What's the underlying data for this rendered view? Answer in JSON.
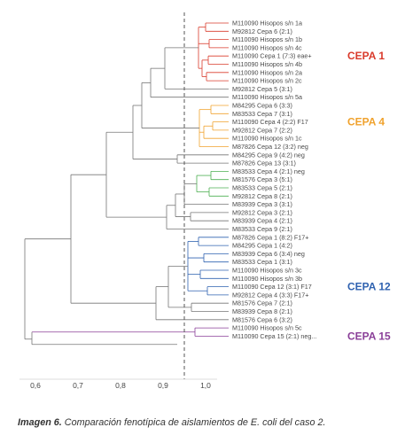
{
  "leaves": [
    "M110090 Hisopos s/n 1a",
    "M92812 Cepa 6 (2:1)",
    "M110090 Hisopos s/n 1b",
    "M110090 Hisopos s/n 4c",
    "M110090 Cepa 1 (7:3) eae+",
    "M110090 Hisopos s/n 4b",
    "M110090 Hisopos s/n 2a",
    "M110090 Hisopos s/n 2c",
    "M92812 Cepa 5 (3:1)",
    "M110090 Hisopos s/n 5a",
    "M84295 Cepa 6 (3:3)",
    "M83533 Cepa 7 (3:1)",
    "M110090 Cepa 4 (2:2) F17",
    "M92812 Cepa 7 (2:2)",
    "M110090 Hisopos s/n 1c",
    "M87826 Cepa 12 (3:2) neg",
    "M84295 Cepa 9 (4:2) neg",
    "M87826 Cepa 13 (3:1)",
    "M83533 Cepa 4 (2:1) neg",
    "M81576 Cepa 3 (5:1)",
    "M83533 Cepa 5 (2:1)",
    "M92812 Cepa 8 (2:1)",
    "M83939 Cepa 3 (3:1)",
    "M92812 Cepa 3 (2:1)",
    "M83939 Cepa 4 (2:1)",
    "M83533 Cepa 9 (2:1)",
    "M87826 Cepa 1 (8:2) F17+",
    "M84295 Cepa 1 (4:2)",
    "M83939 Cepa 6 (3:4) neg",
    "M83533 Cepa 1 (3:1)",
    "M110090 Hisopos s/n 3c",
    "M110090 Hisopos s/n 3b",
    "M110090 Cepa 12 (3:1) F17",
    "M92812 Cepa 4 (3:3) F17+",
    "M81576 Cepa 7 (2:1)",
    "M83939 Cepa 8 (2:1)",
    "M81576 Cepa 6 (3:2)",
    "M110090 Hisopos s/n 5c",
    "M110090 Cepa 15 (2:1) neg..."
  ],
  "axis": {
    "ticks": [
      0.6,
      0.7,
      0.8,
      0.9,
      1.0
    ],
    "tick_labels": [
      "0,6",
      "0,7",
      "0,8",
      "0,9",
      "1,0"
    ],
    "cutoff": 0.95
  },
  "clusters": [
    {
      "label": "CEPA 1",
      "first": 0,
      "last": 7,
      "color": "#d93a2b",
      "label_leaf": 4
    },
    {
      "label": "CEPA 4",
      "first": 10,
      "last": 15,
      "color": "#f0a22d",
      "label_leaf": 12
    },
    {
      "label": "CEPA 12",
      "first": 26,
      "last": 33,
      "color": "#2f62b0",
      "label_leaf": 32
    },
    {
      "label": "CEPA 15",
      "first": 37,
      "last": 38,
      "color": "#8a3f98",
      "label_leaf": 38
    }
  ],
  "green_group": {
    "first": 18,
    "last": 21,
    "color": "#4caf50"
  },
  "caption": {
    "bold": "Imagen 6.",
    "text": " Comparación fenotípica de aislamientos de E. coli del caso 2."
  }
}
